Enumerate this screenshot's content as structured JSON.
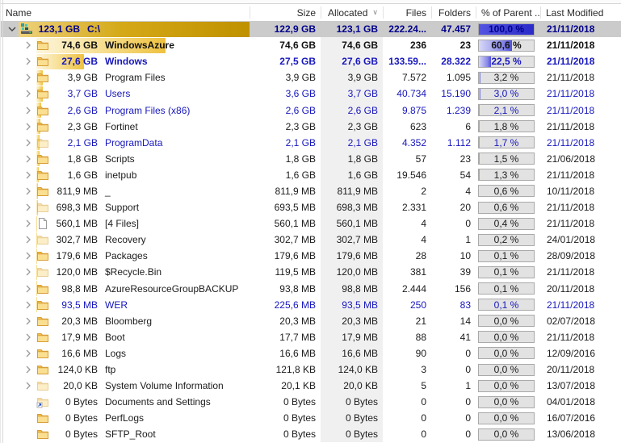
{
  "header": {
    "columns": {
      "name": "Name",
      "size": "Size",
      "allocated": "Allocated",
      "allocated_sort_icon": "chevron-down",
      "files": "Files",
      "folders": "Folders",
      "pct_of_parent": "% of Parent ...",
      "last_modified": "Last Modified"
    }
  },
  "colors": {
    "selection_bg": "#cbcbcb",
    "gold_bar_start": "#fdf6dd",
    "gold_bar_end": "#eec23f",
    "gold_bar_root_end": "#bf9100",
    "pct_fill_blue": "#3434d8",
    "blue_text": "#1717bd",
    "selected_text": "#00008c",
    "allocated_column_tint": "#f1f0f1"
  },
  "rows": [
    {
      "name": "C:\\",
      "tree_size": "123,1 GB",
      "size": "122,9 GB",
      "alloc": "123,1 GB",
      "files": "222.24...",
      "folders": "47.457",
      "pct_label": "100,0 %",
      "pct": 100,
      "modified": "21/11/2018",
      "style": "selected",
      "icon": "drive",
      "chevron": "expanded",
      "selected": true
    },
    {
      "name": "WindowsAzure",
      "tree_size": "74,6 GB",
      "size": "74,6 GB",
      "alloc": "74,6 GB",
      "files": "236",
      "folders": "23",
      "pct_label": "60,6 %",
      "pct": 60.6,
      "modified": "21/11/2018",
      "style": "bold-black",
      "icon": "folder",
      "chevron": "collapsed"
    },
    {
      "name": "Windows",
      "tree_size": "27,6 GB",
      "size": "27,5 GB",
      "alloc": "27,6 GB",
      "files": "133.59...",
      "folders": "28.322",
      "pct_label": "22,5 %",
      "pct": 22.5,
      "modified": "21/11/2018",
      "style": "bold-blue",
      "icon": "folder",
      "chevron": "collapsed"
    },
    {
      "name": "Program Files",
      "tree_size": "3,9 GB",
      "size": "3,9 GB",
      "alloc": "3,9 GB",
      "files": "7.572",
      "folders": "1.095",
      "pct_label": "3,2 %",
      "pct": 3.2,
      "modified": "21/11/2018",
      "style": "normal",
      "icon": "folder",
      "chevron": "collapsed"
    },
    {
      "name": "Users",
      "tree_size": "3,7 GB",
      "size": "3,6 GB",
      "alloc": "3,7 GB",
      "files": "40.734",
      "folders": "15.190",
      "pct_label": "3,0 %",
      "pct": 3.0,
      "modified": "21/11/2018",
      "style": "blue",
      "icon": "folder",
      "chevron": "collapsed"
    },
    {
      "name": "Program Files (x86)",
      "tree_size": "2,6 GB",
      "size": "2,6 GB",
      "alloc": "2,6 GB",
      "files": "9.875",
      "folders": "1.239",
      "pct_label": "2,1 %",
      "pct": 2.1,
      "modified": "21/11/2018",
      "style": "blue",
      "icon": "folder",
      "chevron": "collapsed"
    },
    {
      "name": "Fortinet",
      "tree_size": "2,3 GB",
      "size": "2,3 GB",
      "alloc": "2,3 GB",
      "files": "623",
      "folders": "6",
      "pct_label": "1,8 %",
      "pct": 1.8,
      "modified": "21/11/2018",
      "style": "normal",
      "icon": "folder",
      "chevron": "collapsed"
    },
    {
      "name": "ProgramData",
      "tree_size": "2,1 GB",
      "size": "2,1 GB",
      "alloc": "2,1 GB",
      "files": "4.352",
      "folders": "1.112",
      "pct_label": "1,7 %",
      "pct": 1.7,
      "modified": "21/11/2018",
      "style": "blue",
      "icon": "folder-pale",
      "chevron": "collapsed"
    },
    {
      "name": "Scripts",
      "tree_size": "1,8 GB",
      "size": "1,8 GB",
      "alloc": "1,8 GB",
      "files": "57",
      "folders": "23",
      "pct_label": "1,5 %",
      "pct": 1.5,
      "modified": "21/06/2018",
      "style": "normal",
      "icon": "folder",
      "chevron": "collapsed"
    },
    {
      "name": "inetpub",
      "tree_size": "1,6 GB",
      "size": "1,6 GB",
      "alloc": "1,6 GB",
      "files": "19.546",
      "folders": "54",
      "pct_label": "1,3 %",
      "pct": 1.3,
      "modified": "21/11/2018",
      "style": "normal",
      "icon": "folder",
      "chevron": "collapsed"
    },
    {
      "name": "_",
      "tree_size": "811,9 MB",
      "size": "811,9 MB",
      "alloc": "811,9 MB",
      "files": "2",
      "folders": "4",
      "pct_label": "0,6 %",
      "pct": 0.6,
      "modified": "10/11/2018",
      "style": "normal",
      "icon": "folder",
      "chevron": "collapsed"
    },
    {
      "name": "Support",
      "tree_size": "698,3 MB",
      "size": "693,5 MB",
      "alloc": "698,3 MB",
      "files": "2.331",
      "folders": "20",
      "pct_label": "0,6 %",
      "pct": 0.6,
      "modified": "21/11/2018",
      "style": "normal",
      "icon": "folder-pale",
      "chevron": "collapsed"
    },
    {
      "name": "[4 Files]",
      "tree_size": "560,1 MB",
      "size": "560,1 MB",
      "alloc": "560,1 MB",
      "files": "4",
      "folders": "0",
      "pct_label": "0,4 %",
      "pct": 0.4,
      "modified": "21/11/2018",
      "style": "normal",
      "icon": "file",
      "chevron": "collapsed"
    },
    {
      "name": "Recovery",
      "tree_size": "302,7 MB",
      "size": "302,7 MB",
      "alloc": "302,7 MB",
      "files": "4",
      "folders": "1",
      "pct_label": "0,2 %",
      "pct": 0.2,
      "modified": "24/01/2018",
      "style": "normal",
      "icon": "folder-pale",
      "chevron": "collapsed"
    },
    {
      "name": "Packages",
      "tree_size": "179,6 MB",
      "size": "179,6 MB",
      "alloc": "179,6 MB",
      "files": "28",
      "folders": "10",
      "pct_label": "0,1 %",
      "pct": 0.1,
      "modified": "28/09/2018",
      "style": "normal",
      "icon": "folder",
      "chevron": "collapsed"
    },
    {
      "name": "$Recycle.Bin",
      "tree_size": "120,0 MB",
      "size": "119,5 MB",
      "alloc": "120,0 MB",
      "files": "381",
      "folders": "39",
      "pct_label": "0,1 %",
      "pct": 0.1,
      "modified": "21/11/2018",
      "style": "normal",
      "icon": "folder-pale",
      "chevron": "collapsed"
    },
    {
      "name": "AzureResourceGroupBACKUP",
      "tree_size": "98,8 MB",
      "size": "93,8 MB",
      "alloc": "98,8 MB",
      "files": "2.444",
      "folders": "156",
      "pct_label": "0,1 %",
      "pct": 0.1,
      "modified": "20/11/2018",
      "style": "normal",
      "icon": "folder",
      "chevron": "collapsed"
    },
    {
      "name": "WER",
      "tree_size": "93,5 MB",
      "size": "225,6 MB",
      "alloc": "93,5 MB",
      "files": "250",
      "folders": "83",
      "pct_label": "0,1 %",
      "pct": 0.1,
      "modified": "21/11/2018",
      "style": "blue",
      "icon": "folder",
      "chevron": "collapsed"
    },
    {
      "name": "Bloomberg",
      "tree_size": "20,3 MB",
      "size": "20,3 MB",
      "alloc": "20,3 MB",
      "files": "21",
      "folders": "14",
      "pct_label": "0,0 %",
      "pct": 0,
      "modified": "02/07/2018",
      "style": "normal",
      "icon": "folder",
      "chevron": "collapsed"
    },
    {
      "name": "Boot",
      "tree_size": "17,9 MB",
      "size": "17,7 MB",
      "alloc": "17,9 MB",
      "files": "88",
      "folders": "41",
      "pct_label": "0,0 %",
      "pct": 0,
      "modified": "21/11/2018",
      "style": "normal",
      "icon": "folder",
      "chevron": "collapsed"
    },
    {
      "name": "Logs",
      "tree_size": "16,6 MB",
      "size": "16,6 MB",
      "alloc": "16,6 MB",
      "files": "90",
      "folders": "0",
      "pct_label": "0,0 %",
      "pct": 0,
      "modified": "12/09/2016",
      "style": "normal",
      "icon": "folder",
      "chevron": "collapsed"
    },
    {
      "name": "ftp",
      "tree_size": "124,0 KB",
      "size": "121,8 KB",
      "alloc": "124,0 KB",
      "files": "3",
      "folders": "0",
      "pct_label": "0,0 %",
      "pct": 0,
      "modified": "20/11/2018",
      "style": "normal",
      "icon": "folder",
      "chevron": "collapsed"
    },
    {
      "name": "System Volume Information",
      "tree_size": "20,0 KB",
      "size": "20,1 KB",
      "alloc": "20,0 KB",
      "files": "5",
      "folders": "1",
      "pct_label": "0,0 %",
      "pct": 0,
      "modified": "13/07/2018",
      "style": "normal",
      "icon": "folder-pale",
      "chevron": "collapsed"
    },
    {
      "name": "Documents and Settings",
      "tree_size": "0 Bytes",
      "size": "0 Bytes",
      "alloc": "0 Bytes",
      "files": "0",
      "folders": "0",
      "pct_label": "0,0 %",
      "pct": 0,
      "modified": "04/01/2018",
      "style": "normal",
      "icon": "folder-link",
      "chevron": "none"
    },
    {
      "name": "PerfLogs",
      "tree_size": "0 Bytes",
      "size": "0 Bytes",
      "alloc": "0 Bytes",
      "files": "0",
      "folders": "0",
      "pct_label": "0,0 %",
      "pct": 0,
      "modified": "16/07/2016",
      "style": "normal",
      "icon": "folder",
      "chevron": "none"
    },
    {
      "name": "SFTP_Root",
      "tree_size": "0 Bytes",
      "size": "0 Bytes",
      "alloc": "0 Bytes",
      "files": "0",
      "folders": "0",
      "pct_label": "0,0 %",
      "pct": 0,
      "modified": "13/06/2018",
      "style": "normal",
      "icon": "folder",
      "chevron": "none"
    }
  ]
}
